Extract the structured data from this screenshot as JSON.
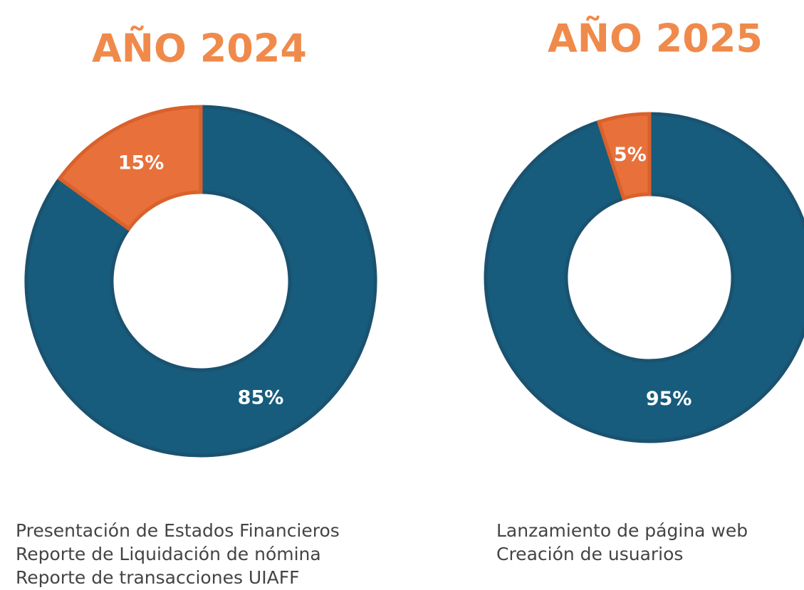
{
  "chart_data": [
    {
      "type": "donut",
      "title": "AÑO 2024",
      "values": [
        85,
        15
      ],
      "value_labels": [
        "85%",
        "15%"
      ],
      "colors": [
        "#175c7c",
        "#e8703a"
      ],
      "annotations": [
        "Presentación de Estados Financieros",
        "Reporte de Liquidación de nómina",
        "Reporte de transacciones UIAFF"
      ]
    },
    {
      "type": "donut",
      "title": "AÑO 2025",
      "values": [
        95,
        5
      ],
      "value_labels": [
        "95%",
        "5%"
      ],
      "colors": [
        "#175c7c",
        "#e8703a"
      ],
      "annotations": [
        "Lanzamiento de página web",
        "Creación de usuarios"
      ]
    }
  ]
}
